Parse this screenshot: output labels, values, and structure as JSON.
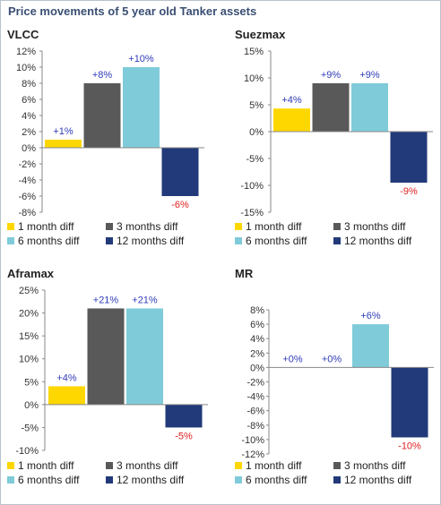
{
  "title": "Price movements of 5 year old Tanker assets",
  "colors": {
    "series": [
      "#FFD700",
      "#595959",
      "#7FCBD9",
      "#223A7A"
    ],
    "label_positive": "#2F3BB8",
    "label_negative": "#E02020"
  },
  "chart_data": [
    {
      "type": "bar",
      "title": "VLCC",
      "categories": [
        "1 month diff",
        "3 months diff",
        "6 months diff",
        "12 months diff"
      ],
      "values": [
        1,
        8,
        10,
        -6
      ],
      "data_labels": [
        "+1%",
        "+8%",
        "+10%",
        "-6%"
      ],
      "ylim": [
        -8,
        12
      ],
      "yticks": [
        12,
        10,
        8,
        6,
        4,
        2,
        0,
        -2,
        -4,
        -6,
        -8
      ],
      "ytick_labels": [
        "12%",
        "10%",
        "8%",
        "6%",
        "4%",
        "2%",
        "0%",
        "-2%",
        "-4%",
        "-6%",
        "-8%"
      ],
      "legend": [
        "1 month diff",
        "3 months diff",
        "6 months diff",
        "12 months diff"
      ],
      "legend_position": "bottom",
      "grid": false
    },
    {
      "type": "bar",
      "title": "Suezmax",
      "categories": [
        "1 month diff",
        "3 months diff",
        "6 months diff",
        "12 months diff"
      ],
      "values": [
        4.3,
        9,
        9,
        -9.5
      ],
      "data_labels": [
        "+4%",
        "+9%",
        "+9%",
        "-9%"
      ],
      "ylim": [
        -15,
        15
      ],
      "yticks": [
        15,
        10,
        5,
        0,
        -5,
        -10,
        -15
      ],
      "ytick_labels": [
        "15%",
        "10%",
        "5%",
        "0%",
        "-5%",
        "-10%",
        "-15%"
      ],
      "legend": [
        "1 month diff",
        "3 months diff",
        "6 months diff",
        "12 months diff"
      ],
      "legend_position": "bottom",
      "grid": false
    },
    {
      "type": "bar",
      "title": "Aframax",
      "categories": [
        "1 month diff",
        "3 months diff",
        "6 months diff",
        "12 months diff"
      ],
      "values": [
        4,
        21,
        21,
        -5
      ],
      "data_labels": [
        "+4%",
        "+21%",
        "+21%",
        "-5%"
      ],
      "ylim": [
        -10,
        25
      ],
      "yticks": [
        25,
        20,
        15,
        10,
        5,
        0,
        -5,
        -10
      ],
      "ytick_labels": [
        "25%",
        "20%",
        "15%",
        "10%",
        "5%",
        "0%",
        "-5%",
        "-10%"
      ],
      "legend": [
        "1 month diff",
        "3 months diff",
        "6 months diff",
        "12 months diff"
      ],
      "legend_position": "bottom",
      "grid": false
    },
    {
      "type": "bar",
      "title": "MR",
      "categories": [
        "1 month diff",
        "3 months diff",
        "6 months diff",
        "12 months diff"
      ],
      "values": [
        0,
        0,
        6,
        -9.7
      ],
      "data_labels": [
        "+0%",
        "+0%",
        "+6%",
        "-10%"
      ],
      "ylim": [
        -12,
        8
      ],
      "yticks": [
        8,
        6,
        4,
        2,
        0,
        -2,
        -4,
        -6,
        -8,
        -10,
        -12
      ],
      "ytick_labels": [
        "8%",
        "6%",
        "4%",
        "2%",
        "0%",
        "-2%",
        "-4%",
        "-6%",
        "-8%",
        "-10%",
        "-12%"
      ],
      "legend": [
        "1 month diff",
        "3 months diff",
        "6 months diff",
        "12 months diff"
      ],
      "legend_position": "bottom",
      "grid": false
    }
  ]
}
